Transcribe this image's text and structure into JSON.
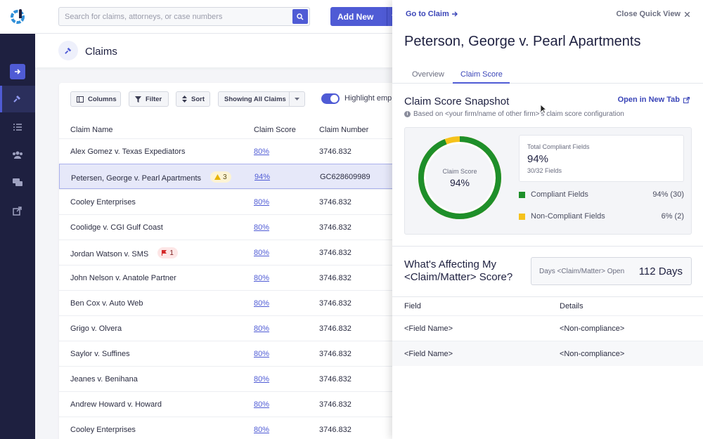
{
  "search": {
    "placeholder": "Search for claims, attorneys, or case numbers"
  },
  "add_new": {
    "label": "Add New"
  },
  "page": {
    "title": "Claims"
  },
  "toolbar": {
    "columns": "Columns",
    "filter": "Filter",
    "sort": "Sort",
    "showing": "Showing All Claims",
    "highlight": "Highlight emp"
  },
  "table": {
    "headers": [
      "Claim Name",
      "Claim Score",
      "Claim Number"
    ],
    "rows": [
      {
        "name": "Alex Gomez v. Texas Expediators",
        "score": "80%",
        "number": "3746.832"
      },
      {
        "name": "Petersen, George v. Pearl Apartments",
        "score": "94%",
        "number": "GC628609989",
        "badge": "3"
      },
      {
        "name": "Cooley Enterprises",
        "score": "80%",
        "number": "3746.832"
      },
      {
        "name": "Coolidge v. CGI Gulf Coast",
        "score": "80%",
        "number": "3746.832"
      },
      {
        "name": "Jordan Watson v. SMS",
        "score": "80%",
        "number": "3746.832",
        "badge": "1"
      },
      {
        "name": "John Nelson v. Anatole Partner",
        "score": "80%",
        "number": "3746.832"
      },
      {
        "name": "Ben Cox v. Auto Web",
        "score": "80%",
        "number": "3746.832"
      },
      {
        "name": "Grigo v. Olvera",
        "score": "80%",
        "number": "3746.832"
      },
      {
        "name": "Saylor v. Suffines",
        "score": "80%",
        "number": "3746.832"
      },
      {
        "name": "Jeanes v. Benihana",
        "score": "80%",
        "number": "3746.832"
      },
      {
        "name": "Andrew Howard v. Howard",
        "score": "80%",
        "number": "3746.832"
      },
      {
        "name": "Cooley Enterprises",
        "score": "80%",
        "number": "3746.832"
      }
    ]
  },
  "panel": {
    "goto": "Go to Claim",
    "close": "Close Quick View",
    "title": "Peterson, George v. Pearl Apartments",
    "tabs": [
      "Overview",
      "Claim Score"
    ],
    "snapshot_title": "Claim Score Snapshot",
    "open_new_tab": "Open in New Tab",
    "snapshot_sub": "Based on <your firm/name of other firm>'s claim score configuration",
    "donut_label": "Claim Score",
    "donut_value": "94%",
    "compliant_fraction": 0.94,
    "total_label": "Total Compliant Fields",
    "total_value": "94%",
    "total_sub": "30/32 Fields",
    "legend": [
      {
        "name": "Compliant Fields",
        "value": "94% (30)",
        "color": "#1e8f2a"
      },
      {
        "name": "Non-Compliant Fields",
        "value": "6% (2)",
        "color": "#f5c21b"
      }
    ],
    "affect_title_1": "What's Affecting My",
    "affect_title_2": "<Claim/Matter> Score?",
    "days_label": "Days <Claim/Matter> Open",
    "days_value": "112 Days",
    "field_headers": [
      "Field",
      "Details"
    ],
    "fields": [
      {
        "field": "<Field Name>",
        "details": "<Non-compliance>"
      },
      {
        "field": "<Field Name>",
        "details": "<Non-compliance>"
      }
    ]
  },
  "colors": {
    "accent": "#4f5bd5",
    "rail": "#1e2040",
    "compliant": "#1e8f2a",
    "noncompliant": "#f5c21b"
  }
}
